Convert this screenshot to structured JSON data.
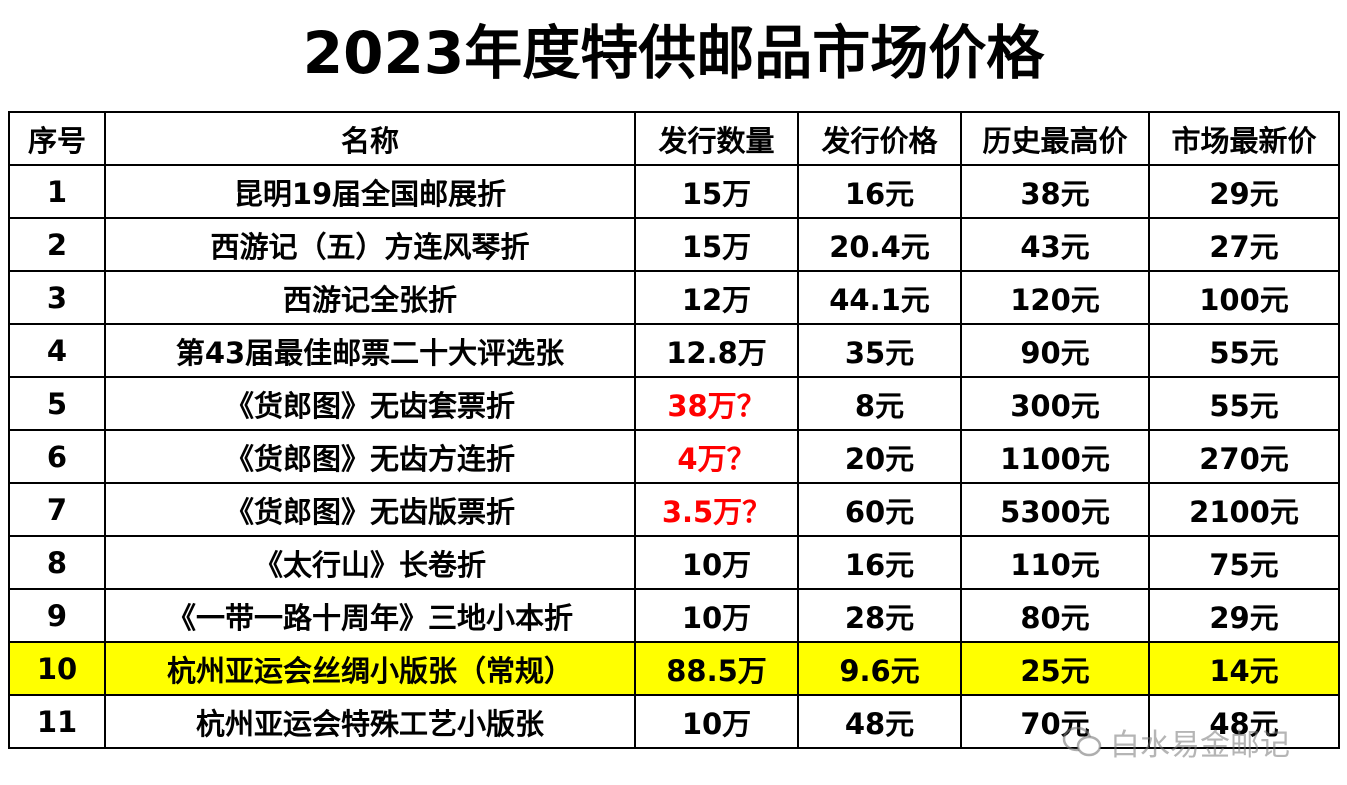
{
  "title": "2023年度特供邮品市场价格",
  "table": {
    "header": [
      "序号",
      "名称",
      "发行数量",
      "发行价格",
      "历史最高价",
      "市场最新价"
    ],
    "rows": [
      [
        "1",
        "昆明19届全国邮展折",
        "15万",
        "16元",
        "38元",
        "29元"
      ],
      [
        "2",
        "西游记（五）方连风琴折",
        "15万",
        "20.4元",
        "43元",
        "27元"
      ],
      [
        "3",
        "西游记全张折",
        "12万",
        "44.1元",
        "120元",
        "100元"
      ],
      [
        "4",
        "第43届最佳邮票二十大评选张",
        "12.8万",
        "35元",
        "90元",
        "55元"
      ],
      [
        "5",
        "《货郎图》无齿套票折",
        "38万？",
        "8元",
        "300元",
        "55元"
      ],
      [
        "6",
        "《货郎图》无齿方连折",
        "4万？",
        "20元",
        "1100元",
        "270元"
      ],
      [
        "7",
        "《货郎图》无齿版票折",
        "3.5万？",
        "60元",
        "5300元",
        "2100元"
      ],
      [
        "8",
        "《太行山》长卷折",
        "10万",
        "16元",
        "110元",
        "75元"
      ],
      [
        "9",
        "《一带一路十周年》三地小本折",
        "10万",
        "28元",
        "80元",
        "29元"
      ],
      [
        "10",
        "杭州亚运会丝绸小版张（常规）",
        "88.5万",
        "9.6元",
        "25元",
        "14元"
      ],
      [
        "11",
        "杭州亚运会特殊工艺小版张",
        "10万",
        "48元",
        "70元",
        "48元"
      ]
    ]
  },
  "watermark": "白水易金邮记"
}
